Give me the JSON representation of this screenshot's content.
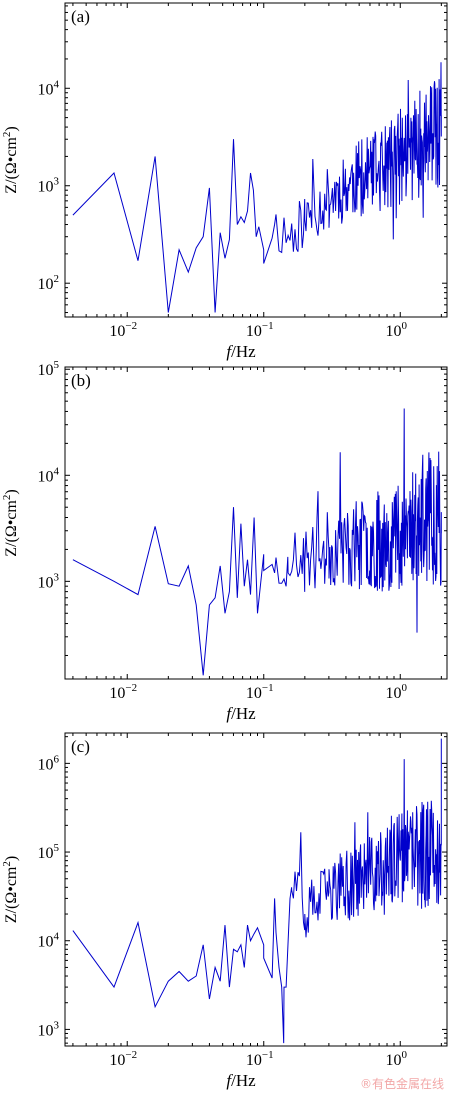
{
  "figure": {
    "watermark": "®有色金属在线"
  },
  "chart_data": [
    {
      "type": "line",
      "panel_label": "(a)",
      "xlabel_italic": "f",
      "xlabel_rest": "/Hz",
      "ylabel": "Z/(Ω•cm",
      "ylabel_sup": "2",
      "ylabel_close": ")",
      "xscale": "log",
      "yscale": "log",
      "xlim": [
        0.0035,
        2.2
      ],
      "ylim": [
        45,
        75000
      ],
      "x_ticks": [
        {
          "value": 0.01,
          "base": "10",
          "exp": "−2"
        },
        {
          "value": 0.1,
          "base": "10",
          "exp": "−1"
        },
        {
          "value": 1,
          "base": "10",
          "exp": "0"
        }
      ],
      "y_ticks": [
        {
          "value": 100,
          "base": "10",
          "exp": "2"
        },
        {
          "value": 1000,
          "base": "10",
          "exp": "3"
        },
        {
          "value": 10000,
          "base": "10",
          "exp": "4"
        }
      ],
      "color": "#0000cc",
      "seed": 11,
      "series": [
        {
          "x": [
            0.004,
            0.008,
            0.012,
            0.016,
            0.02,
            0.024,
            0.028,
            0.032,
            0.036,
            0.04,
            0.044,
            0.048,
            0.052,
            0.056,
            0.06,
            0.064,
            0.068,
            0.072,
            0.076,
            0.08,
            0.084,
            0.088,
            0.092,
            0.1,
            0.12,
            0.15,
            0.2,
            0.3,
            0.5,
            0.8,
            1.0,
            1.3,
            1.6,
            2.0
          ],
          "y": [
            500,
            1350,
            170,
            2000,
            50,
            220,
            130,
            230,
            300,
            950,
            50,
            330,
            180,
            280,
            3000,
            400,
            480,
            420,
            550,
            1350,
            900,
            300,
            380,
            220,
            400,
            300,
            450,
            750,
            1200,
            1500,
            2000,
            2500,
            3000,
            3200
          ]
        }
      ],
      "noise": {
        "x_start": 0.1,
        "x_end": 2.0,
        "points": 260,
        "spread": 0.45,
        "y_min": 80,
        "y_max": 68000
      }
    },
    {
      "type": "line",
      "panel_label": "(b)",
      "xlabel_italic": "f",
      "xlabel_rest": "/Hz",
      "ylabel": "Z/(Ω•cm",
      "ylabel_sup": "2",
      "ylabel_close": ")",
      "xscale": "log",
      "yscale": "log",
      "xlim": [
        0.0035,
        2.2
      ],
      "ylim": [
        120,
        105000
      ],
      "x_ticks": [
        {
          "value": 0.01,
          "base": "10",
          "exp": "−2"
        },
        {
          "value": 0.1,
          "base": "10",
          "exp": "−1"
        },
        {
          "value": 1,
          "base": "10",
          "exp": "0"
        }
      ],
      "y_ticks": [
        {
          "value": 1000,
          "base": "10",
          "exp": "3"
        },
        {
          "value": 10000,
          "base": "10",
          "exp": "4"
        },
        {
          "value": 100000,
          "base": "10",
          "exp": "5"
        }
      ],
      "color": "#0000cc",
      "seed": 23,
      "series": [
        {
          "x": [
            0.004,
            0.008,
            0.012,
            0.016,
            0.02,
            0.024,
            0.028,
            0.032,
            0.036,
            0.04,
            0.044,
            0.048,
            0.052,
            0.056,
            0.06,
            0.064,
            0.068,
            0.072,
            0.076,
            0.08,
            0.085,
            0.09,
            0.1,
            0.12,
            0.15,
            0.2,
            0.3,
            0.5,
            0.8,
            1.0,
            1.3,
            1.6,
            2.0
          ],
          "y": [
            1600,
            1000,
            750,
            3300,
            950,
            900,
            1400,
            600,
            130,
            600,
            700,
            1400,
            500,
            800,
            5000,
            700,
            3500,
            900,
            1600,
            750,
            4000,
            500,
            1800,
            1200,
            1700,
            1500,
            2000,
            2200,
            2500,
            3000,
            3500,
            4000,
            4500
          ]
        }
      ],
      "noise": {
        "x_start": 0.1,
        "x_end": 2.0,
        "points": 260,
        "spread": 0.5,
        "y_min": 140,
        "y_max": 95000
      }
    },
    {
      "type": "line",
      "panel_label": "(c)",
      "xlabel_italic": "f",
      "xlabel_rest": "/Hz",
      "ylabel": "Z/(Ω•cm",
      "ylabel_sup": "2",
      "ylabel_close": ")",
      "xscale": "log",
      "yscale": "log",
      "xlim": [
        0.0035,
        2.2
      ],
      "ylim": [
        650,
        2200000
      ],
      "x_ticks": [
        {
          "value": 0.01,
          "base": "10",
          "exp": "−2"
        },
        {
          "value": 0.1,
          "base": "10",
          "exp": "−1"
        },
        {
          "value": 1,
          "base": "10",
          "exp": "0"
        }
      ],
      "y_ticks": [
        {
          "value": 1000,
          "base": "10",
          "exp": "3"
        },
        {
          "value": 10000,
          "base": "10",
          "exp": "4"
        },
        {
          "value": 100000,
          "base": "10",
          "exp": "5"
        },
        {
          "value": 1000000,
          "base": "10",
          "exp": "6"
        }
      ],
      "color": "#0000cc",
      "seed": 37,
      "series": [
        {
          "x": [
            0.004,
            0.008,
            0.012,
            0.016,
            0.02,
            0.024,
            0.028,
            0.032,
            0.036,
            0.04,
            0.044,
            0.048,
            0.052,
            0.056,
            0.06,
            0.064,
            0.068,
            0.072,
            0.076,
            0.08,
            0.085,
            0.09,
            0.1,
            0.12,
            0.14,
            0.16,
            0.2,
            0.3,
            0.5,
            0.8,
            1.0,
            1.3,
            1.6,
            2.0
          ],
          "y": [
            13000,
            3000,
            16000,
            1800,
            3500,
            4500,
            3500,
            4000,
            9000,
            2200,
            5000,
            3500,
            15000,
            3000,
            8000,
            7500,
            9000,
            5000,
            15000,
            10000,
            12000,
            14000,
            9000,
            30000,
            700,
            40000,
            20000,
            35000,
            50000,
            60000,
            80000,
            90000,
            100000,
            120000
          ]
        }
      ],
      "noise": {
        "x_start": 0.1,
        "x_end": 2.0,
        "points": 260,
        "spread": 0.5,
        "y_min": 3000,
        "y_max": 1900000
      }
    }
  ]
}
